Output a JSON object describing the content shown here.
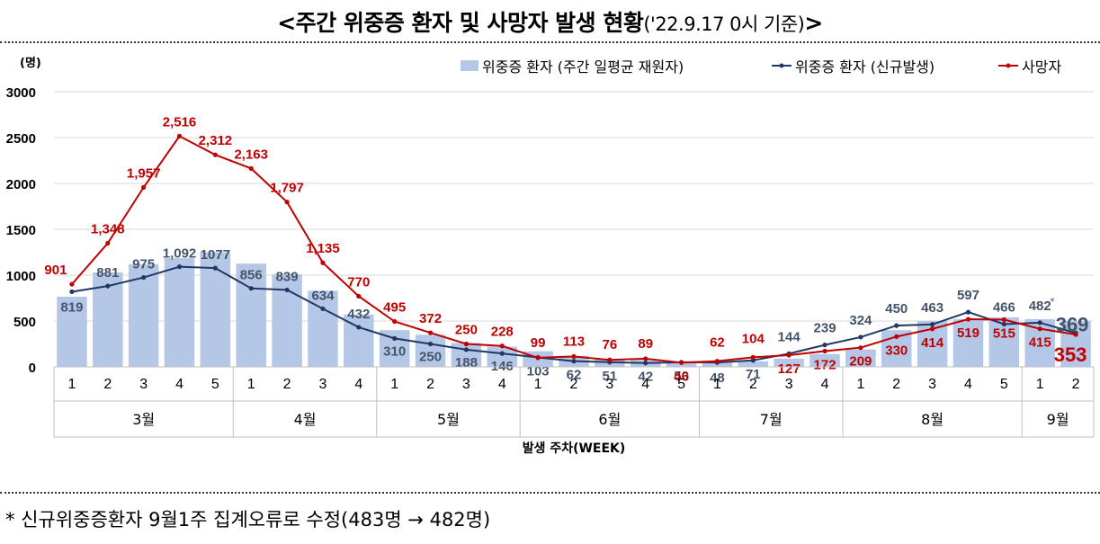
{
  "title": {
    "main": "<주간 위중증 환자 및 사망자 발생 현황",
    "date": "('22.9.17 0시 기준)",
    "close": ">"
  },
  "footnote": "* 신규위중증환자 9월1주 집계오류로 수정(483명 → 482명)",
  "colors": {
    "bar": "#b4c7e7",
    "severe_line": "#1f3864",
    "death_line": "#c00000",
    "severe_label": "#44546a",
    "death_label": "#c00000"
  },
  "chart_data": {
    "type": "bar+line",
    "unit_label": "(명)",
    "xlabel": "발생 주차(WEEK)",
    "ylim": [
      0,
      3000
    ],
    "yticks": [
      0,
      500,
      1000,
      1500,
      2000,
      2500,
      3000
    ],
    "legend": {
      "bar": "위중증 환자 (주간 일평균 재원자)",
      "severe": "위중증 환자 (신규발생)",
      "death": "사망자",
      "placement": "top-right"
    },
    "months": [
      {
        "label": "3월",
        "weeks": [
          "1",
          "2",
          "3",
          "4",
          "5"
        ]
      },
      {
        "label": "4월",
        "weeks": [
          "1",
          "2",
          "3",
          "4"
        ]
      },
      {
        "label": "5월",
        "weeks": [
          "1",
          "2",
          "3",
          "4"
        ]
      },
      {
        "label": "6월",
        "weeks": [
          "1",
          "2",
          "3",
          "4",
          "5"
        ]
      },
      {
        "label": "7월",
        "weeks": [
          "1",
          "2",
          "3",
          "4"
        ]
      },
      {
        "label": "8월",
        "weeks": [
          "1",
          "2",
          "3",
          "4",
          "5"
        ]
      },
      {
        "label": "9월",
        "weeks": [
          "1",
          "2"
        ]
      }
    ],
    "series": [
      {
        "name": "위중증 환자 (주간 일평균 재원자)",
        "kind": "bar",
        "values": [
          765,
          1030,
          1120,
          1185,
          1250,
          1125,
          1010,
          830,
          570,
          400,
          350,
          260,
          220,
          170,
          120,
          85,
          75,
          50,
          50,
          60,
          90,
          140,
          190,
          400,
          500,
          520,
          540,
          520,
          500
        ]
      },
      {
        "name": "위중증 환자 (신규발생)",
        "kind": "line",
        "values": [
          819,
          881,
          975,
          1092,
          1077,
          856,
          839,
          634,
          432,
          310,
          250,
          188,
          146,
          103,
          62,
          51,
          42,
          50,
          48,
          71,
          144,
          239,
          324,
          450,
          463,
          597,
          466,
          482,
          369
        ],
        "labels": [
          "819",
          "881",
          "975",
          "1,092",
          "1077",
          "856",
          "839",
          "634",
          "432",
          "310",
          "250",
          "188",
          "146",
          "103",
          "62",
          "51",
          "42",
          "50",
          "48",
          "71",
          "144",
          "239",
          "324",
          "450",
          "463",
          "597",
          "466",
          "482",
          "369"
        ],
        "note_marker": "*"
      },
      {
        "name": "사망자",
        "kind": "line",
        "values": [
          901,
          1348,
          1957,
          2516,
          2312,
          2163,
          1797,
          1135,
          770,
          495,
          372,
          250,
          228,
          99,
          113,
          76,
          89,
          46,
          62,
          104,
          127,
          172,
          209,
          330,
          414,
          519,
          515,
          415,
          353
        ],
        "labels": [
          "901",
          "1,348",
          "1,957",
          "2,516",
          "2,312",
          "2,163",
          "1,797",
          "1,135",
          "770",
          "495",
          "372",
          "250",
          "228",
          "99",
          "113",
          "76",
          "89",
          "46",
          "62",
          "104",
          "127",
          "172",
          "209",
          "330",
          "414",
          "519",
          "515",
          "415",
          "353"
        ]
      }
    ]
  }
}
